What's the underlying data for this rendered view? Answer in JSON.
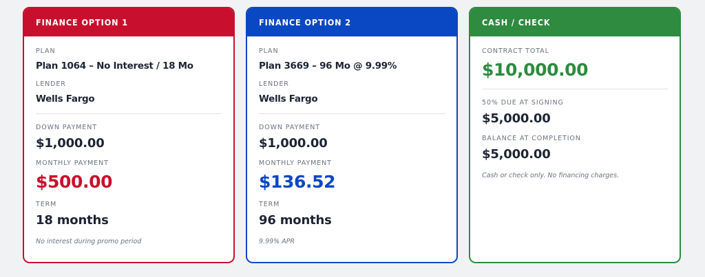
{
  "cards": [
    {
      "title": "FINANCE OPTION 1",
      "accent": "#c8102e",
      "plan_label": "PLAN",
      "plan": "Plan 1064 – No Interest / 18 Mo",
      "lender_label": "LENDER",
      "lender": "Wells Fargo",
      "down_label": "DOWN PAYMENT",
      "down": "$1,000.00",
      "monthly_label": "MONTHLY PAYMENT",
      "monthly": "$500.00",
      "term_label": "TERM",
      "term": "18 months",
      "note": "No interest during promo period"
    },
    {
      "title": "FINANCE OPTION 2",
      "accent": "#0a47c2",
      "plan_label": "PLAN",
      "plan": "Plan 3669 – 96 Mo @ 9.99%",
      "lender_label": "LENDER",
      "lender": "Wells Fargo",
      "down_label": "DOWN PAYMENT",
      "down": "$1,000.00",
      "monthly_label": "MONTHLY PAYMENT",
      "monthly": "$136.52",
      "term_label": "TERM",
      "term": "96 months",
      "note": "9.99% APR"
    }
  ],
  "cash": {
    "title": "CASH / CHECK",
    "accent": "#2e8b3f",
    "contract_label": "CONTRACT TOTAL",
    "contract": "$10,000.00",
    "signing_label": "50% DUE AT SIGNING",
    "signing": "$5,000.00",
    "completion_label": "BALANCE AT COMPLETION",
    "completion": "$5,000.00",
    "note": "Cash or check only. No financing charges."
  }
}
